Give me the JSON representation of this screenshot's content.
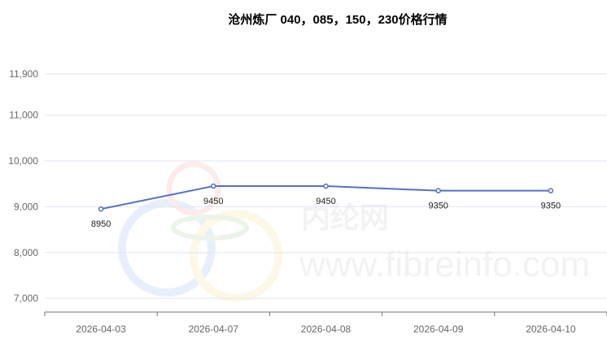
{
  "chart_data": {
    "type": "line",
    "title": "沧州炼厂 040，085，150，230价格行情",
    "categories": [
      "2026-04-03",
      "2026-04-07",
      "2026-04-08",
      "2026-04-09",
      "2026-04-10"
    ],
    "values": [
      8950,
      9450,
      9450,
      9350,
      9350
    ],
    "data_labels": [
      "8950",
      "9450",
      "9450",
      "9350",
      "9350"
    ],
    "yticks": [
      7000,
      8000,
      9000,
      10000,
      11000,
      11900
    ],
    "ytick_labels": [
      "7,000",
      "8,000",
      "9,000",
      "10,000",
      "11,000",
      "11,900"
    ],
    "ylim": [
      6700,
      11900
    ],
    "grid": true,
    "line_color": "#5470c6",
    "xlabel": "",
    "ylabel": ""
  },
  "watermark": {
    "cn": "内纶网",
    "url": "www.fibreinfo.com"
  }
}
